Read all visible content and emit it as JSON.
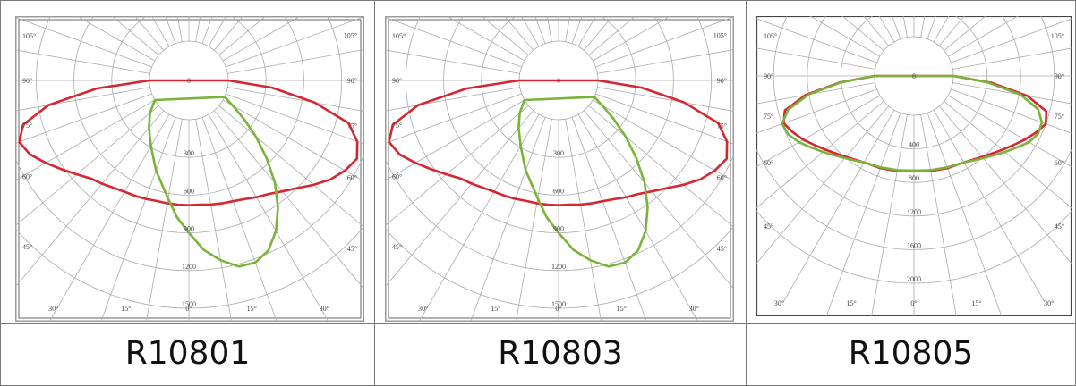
{
  "colors": {
    "c0": "#d62630",
    "c90": "#79b33a",
    "grid": "#aaaaaa",
    "frame": "#555555"
  },
  "panels": [
    {
      "product": "R10801",
      "chart_data": {
        "type": "polar",
        "radial_ticks": [
          "0",
          "300",
          "600",
          "900",
          "1200",
          "1500"
        ],
        "radial_values": [
          0,
          300,
          600,
          900,
          1200,
          1500
        ],
        "angle_labels": [
          "105°",
          "90°",
          "75°",
          "60°",
          "45°",
          "30°",
          "15°",
          "0°",
          "15°",
          "30°",
          "45°",
          "60°",
          "75°",
          "90°",
          "105°"
        ],
        "series": [
          {
            "angles": [
              -90,
              -85,
              -80,
              -75,
              -70,
              -65,
              -60,
              -55,
              -50,
              -45,
              -40,
              -35,
              -30,
              -25,
              -20,
              -15,
              -10,
              -5,
              0,
              5,
              10,
              15,
              20,
              25,
              30,
              35,
              40,
              45,
              50,
              55,
              60,
              65,
              70,
              75,
              80,
              85,
              90
            ],
            "values": [
              0,
              420,
              820,
              1050,
              1120,
              1080,
              1000,
              920,
              850,
              790,
              760,
              730,
              710,
              700,
              690,
              680,
              680,
              680,
              680,
              680,
              690,
              700,
              710,
              730,
              760,
              790,
              840,
              900,
              980,
              1060,
              1120,
              1160,
              1110,
              1000,
              700,
              350,
              0
            ]
          },
          {
            "angles": [
              -60,
              -50,
              -40,
              -30,
              -20,
              -10,
              -5,
              0,
              5,
              10,
              15,
              20,
              25,
              30,
              35,
              40,
              45,
              50,
              55,
              60,
              65
            ],
            "values": [
              0,
              90,
              180,
              290,
              450,
              640,
              780,
              900,
              1040,
              1140,
              1220,
              1230,
              1180,
              1070,
              920,
              750,
              560,
              380,
              220,
              90,
              0
            ]
          }
        ]
      }
    },
    {
      "product": "R10803",
      "chart_data": {
        "type": "polar",
        "radial_ticks": [
          "0",
          "300",
          "600",
          "900",
          "1200",
          "1500"
        ],
        "radial_values": [
          0,
          300,
          600,
          900,
          1200,
          1500
        ],
        "angle_labels": [
          "105°",
          "90°",
          "75°",
          "60°",
          "45°",
          "30°",
          "15°",
          "0°",
          "15°",
          "30°",
          "45°",
          "60°",
          "75°",
          "90°",
          "105°"
        ],
        "series": [
          {
            "angles": [
              -90,
              -85,
              -80,
              -75,
              -70,
              -65,
              -60,
              -55,
              -50,
              -45,
              -40,
              -35,
              -30,
              -25,
              -20,
              -15,
              -10,
              -5,
              0,
              5,
              10,
              15,
              20,
              25,
              30,
              35,
              40,
              45,
              50,
              55,
              60,
              65,
              70,
              75,
              80,
              85,
              90
            ],
            "values": [
              0,
              420,
              820,
              1050,
              1120,
              1080,
              1000,
              920,
              850,
              790,
              760,
              730,
              710,
              700,
              690,
              680,
              680,
              680,
              680,
              680,
              690,
              700,
              710,
              730,
              760,
              790,
              840,
              900,
              980,
              1060,
              1120,
              1160,
              1110,
              1000,
              700,
              350,
              0
            ]
          },
          {
            "angles": [
              -60,
              -50,
              -40,
              -30,
              -20,
              -10,
              -5,
              0,
              5,
              10,
              15,
              20,
              25,
              30,
              35,
              40,
              45,
              50,
              55,
              60,
              65
            ],
            "values": [
              0,
              90,
              180,
              290,
              450,
              640,
              780,
              900,
              1040,
              1140,
              1220,
              1230,
              1180,
              1070,
              920,
              750,
              560,
              380,
              220,
              90,
              0
            ]
          }
        ]
      }
    },
    {
      "product": "R10805",
      "chart_data": {
        "type": "polar",
        "radial_ticks": [
          "0",
          "400",
          "800",
          "1200",
          "1600",
          "2000"
        ],
        "radial_values": [
          0,
          400,
          800,
          1200,
          1600,
          2000
        ],
        "angle_labels": [
          "105°",
          "90°",
          "75°",
          "60°",
          "45°",
          "30°",
          "15°",
          "0°",
          "15°",
          "30°",
          "45°",
          "60°",
          "75°",
          "90°",
          "105°"
        ],
        "series": [
          {
            "angles": [
              -90,
              -85,
              -80,
              -75,
              -70,
              -65,
              -60,
              -55,
              -50,
              -45,
              -40,
              -35,
              -30,
              -20,
              -10,
              0,
              10,
              20,
              30,
              35,
              40,
              45,
              50,
              55,
              60,
              65,
              70,
              75,
              80,
              85,
              90
            ],
            "values": [
              0,
              420,
              840,
              1120,
              1180,
              1120,
              1050,
              970,
              900,
              840,
              790,
              750,
              720,
              700,
              680,
              660,
              680,
              700,
              720,
              750,
              790,
              840,
              900,
              970,
              1050,
              1130,
              1200,
              1160,
              900,
              450,
              0
            ]
          },
          {
            "angles": [
              -90,
              -85,
              -80,
              -75,
              -70,
              -65,
              -60,
              -55,
              -50,
              -45,
              -40,
              -35,
              -30,
              -20,
              -10,
              0,
              10,
              20,
              30,
              35,
              40,
              45,
              50,
              55,
              60,
              65,
              70,
              75,
              80,
              85,
              90
            ],
            "values": [
              0,
              400,
              800,
              1080,
              1200,
              1180,
              1110,
              1020,
              940,
              870,
              810,
              760,
              720,
              690,
              670,
              660,
              670,
              690,
              720,
              760,
              810,
              870,
              940,
              1020,
              1110,
              1160,
              1150,
              1060,
              820,
              410,
              0
            ]
          }
        ]
      }
    }
  ]
}
